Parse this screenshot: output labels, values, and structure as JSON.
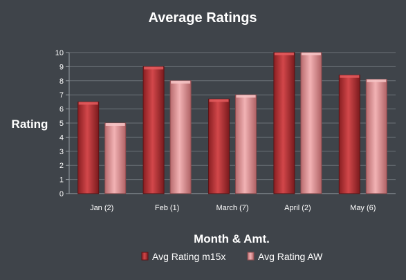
{
  "chart_data": {
    "type": "bar",
    "title": "Average Ratings",
    "xlabel": "Month & Amt.",
    "ylabel": "Rating",
    "ylim": [
      0,
      10
    ],
    "yticks": [
      0,
      1,
      2,
      3,
      4,
      5,
      6,
      7,
      8,
      9,
      10
    ],
    "grid": true,
    "legend_position": "bottom",
    "categories": [
      "Jan (2)",
      "Feb (1)",
      "March (7)",
      "April (2)",
      "May (6)"
    ],
    "series": [
      {
        "name": "Avg Rating m15x",
        "color": "#c0383c",
        "values": [
          6.5,
          9.0,
          6.7,
          10.0,
          8.4
        ]
      },
      {
        "name": "Avg Rating AW",
        "color": "#e89a9c",
        "values": [
          5.0,
          8.0,
          7.0,
          10.0,
          8.1
        ]
      }
    ]
  }
}
